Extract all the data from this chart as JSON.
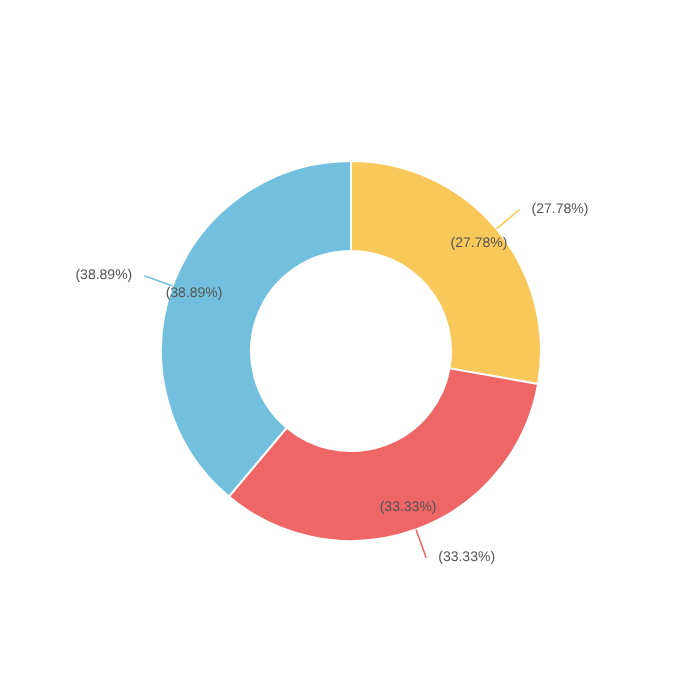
{
  "chart_data": {
    "type": "donut",
    "categories": [
      null,
      null,
      null
    ],
    "values": [
      27.78,
      33.33,
      38.89
    ],
    "colors": [
      "#f9c85a",
      "#ee6666",
      "#73c0de"
    ],
    "value_labels": [
      "(27.78%)",
      "(33.33%)",
      "(38.89%)"
    ]
  }
}
